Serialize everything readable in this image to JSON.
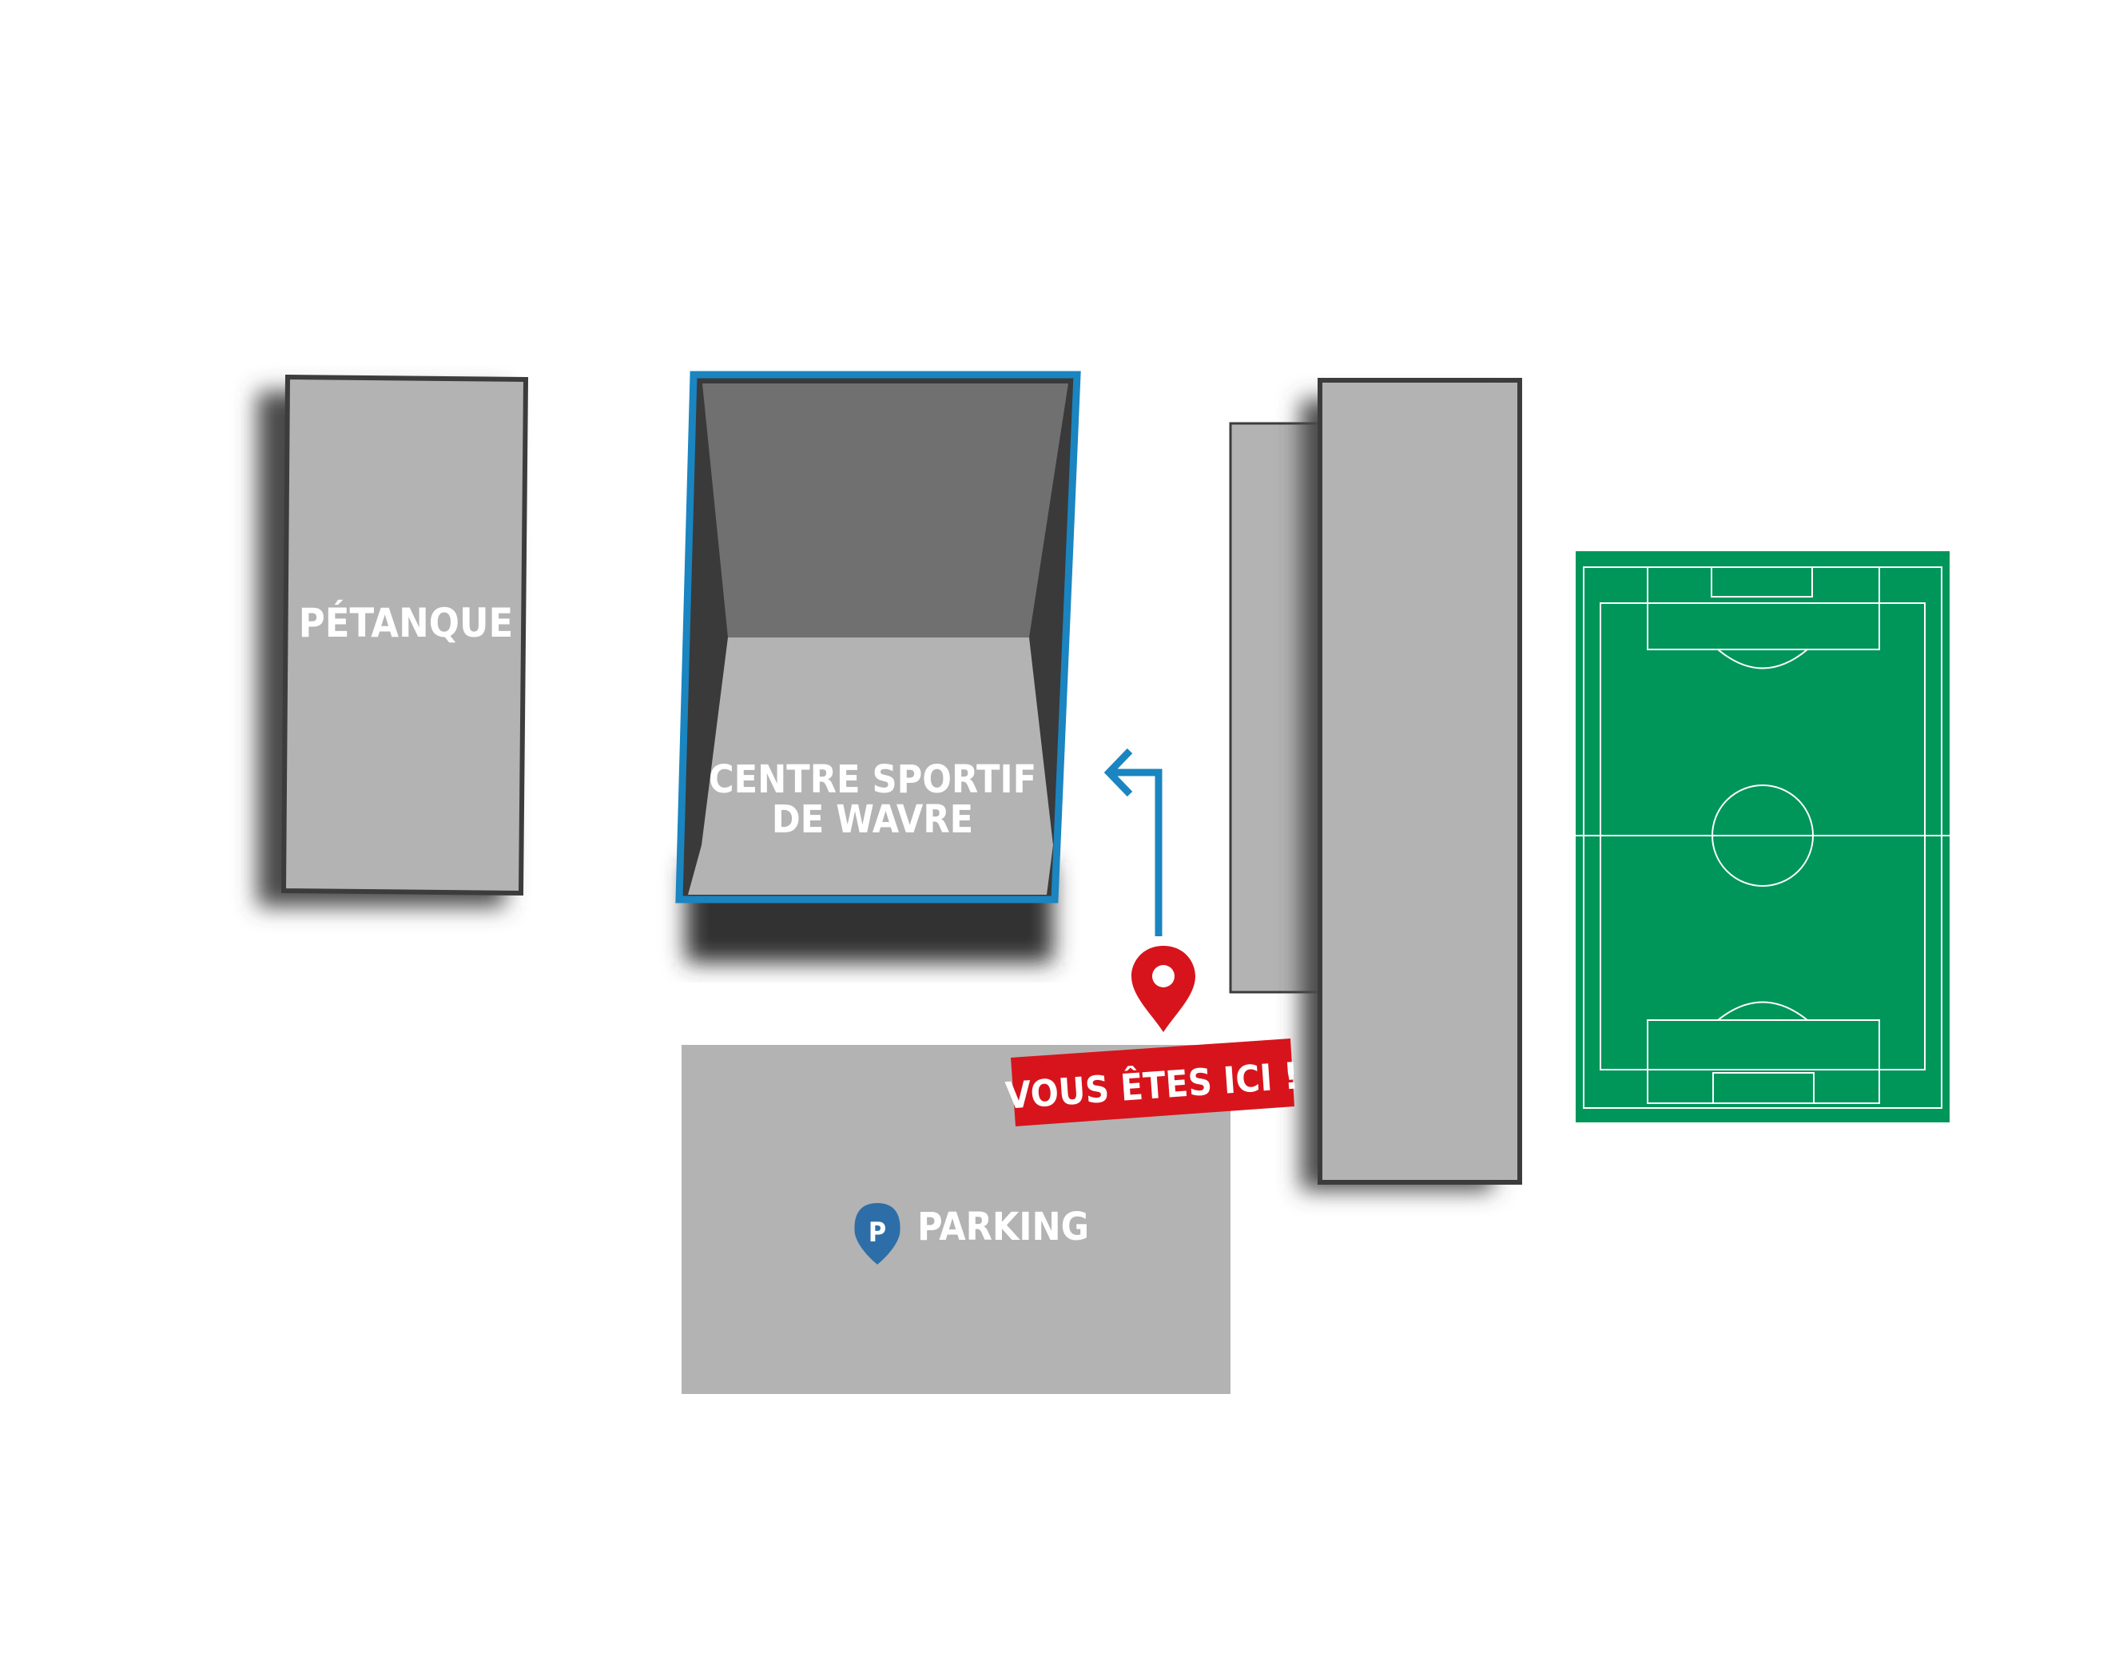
{
  "labels": {
    "petanque": "PÉTANQUE",
    "centre_line1": "CENTRE SPORTIF",
    "centre_line2": "DE WAVRE",
    "parking": "PARKING",
    "parking_icon_letter": "P",
    "you_are_here": "VOUS ÊTES ICI !"
  },
  "icons": {
    "you_are_here_marker": "map-pin-icon",
    "parking_marker": "parking-pin-icon",
    "direction": "arrow-path-icon"
  },
  "colors": {
    "background": "#ffffff",
    "building_fill": "#b3b3b3",
    "building_border": "#3c3c3c",
    "building_shadow": "#555555",
    "centre_border": "#1a85c0",
    "centre_wall": "#707070",
    "centre_dark": "#3a3a3a",
    "direction_arrow": "#1a85c0",
    "marker_red": "#d7141c",
    "parking_icon_blue": "#2d6ea8",
    "football_pitch": "#00965a",
    "pitch_lines": "#ffffff"
  }
}
